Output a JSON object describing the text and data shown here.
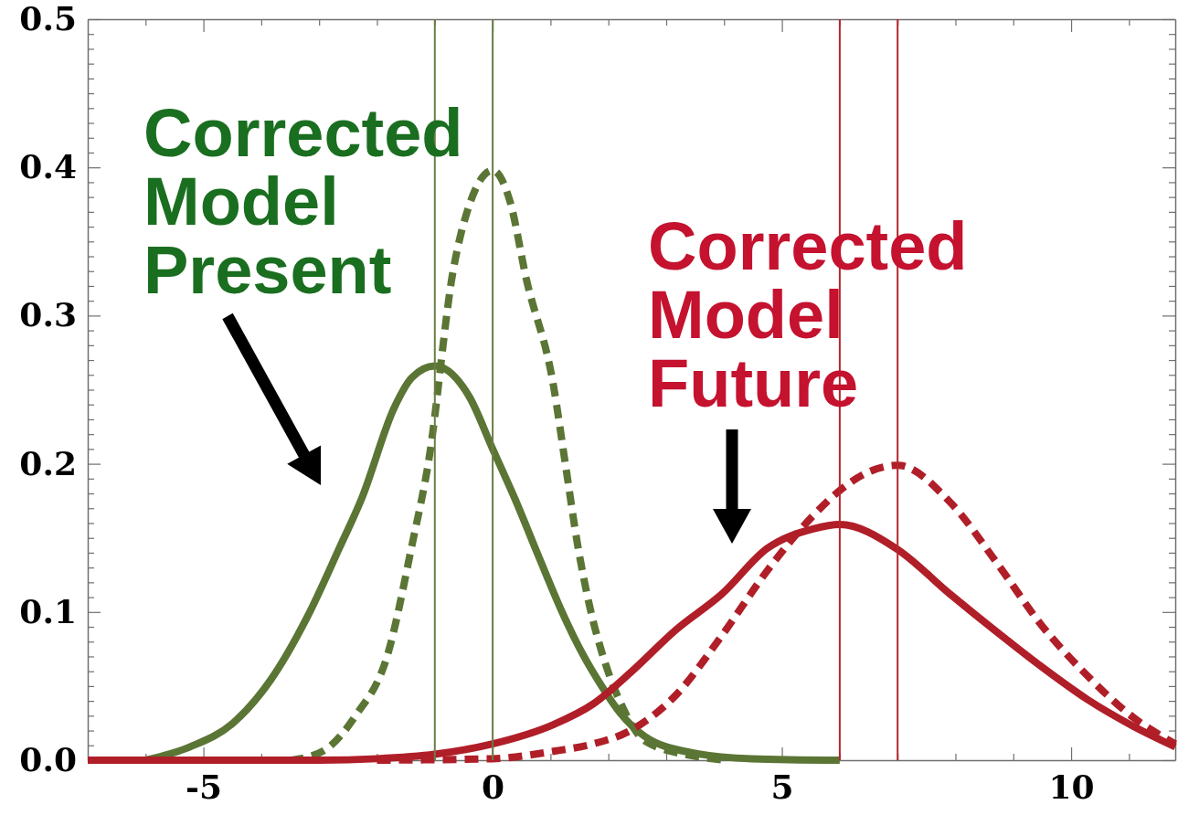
{
  "chart_data": {
    "type": "line",
    "xlim": [
      -7,
      11.8
    ],
    "ylim": [
      0,
      0.5
    ],
    "xticks": [
      {
        "value": -6,
        "label": null
      },
      -5,
      {
        "value": -4,
        "label": null
      },
      {
        "value": -3,
        "label": null
      },
      {
        "value": -2,
        "label": null
      },
      {
        "value": -1,
        "label": null
      },
      0,
      {
        "value": 1,
        "label": null
      },
      {
        "value": 2,
        "label": null
      },
      {
        "value": 3,
        "label": null
      },
      {
        "value": 4,
        "label": null
      },
      5,
      {
        "value": 6,
        "label": null
      },
      {
        "value": 7,
        "label": null
      },
      {
        "value": 8,
        "label": null
      },
      {
        "value": 9,
        "label": null
      },
      10,
      {
        "value": 11,
        "label": null
      }
    ],
    "yticks": [
      {
        "value": 0,
        "label": "0.0"
      },
      {
        "value": 0.01,
        "label": null
      },
      {
        "value": 0.02,
        "label": null
      },
      {
        "value": 0.03,
        "label": null
      },
      {
        "value": 0.04,
        "label": null
      },
      {
        "value": 0.05,
        "label": null
      },
      {
        "value": 0.06,
        "label": null
      },
      {
        "value": 0.07,
        "label": null
      },
      {
        "value": 0.08,
        "label": null
      },
      {
        "value": 0.09,
        "label": null
      },
      0.1,
      {
        "value": 0.11,
        "label": null
      },
      {
        "value": 0.12,
        "label": null
      },
      {
        "value": 0.13,
        "label": null
      },
      {
        "value": 0.14,
        "label": null
      },
      {
        "value": 0.15,
        "label": null
      },
      {
        "value": 0.16,
        "label": null
      },
      {
        "value": 0.17,
        "label": null
      },
      {
        "value": 0.18,
        "label": null
      },
      {
        "value": 0.19,
        "label": null
      },
      0.2,
      {
        "value": 0.21,
        "label": null
      },
      {
        "value": 0.22,
        "label": null
      },
      {
        "value": 0.23,
        "label": null
      },
      {
        "value": 0.24,
        "label": null
      },
      {
        "value": 0.25,
        "label": null
      },
      {
        "value": 0.26,
        "label": null
      },
      {
        "value": 0.27,
        "label": null
      },
      {
        "value": 0.28,
        "label": null
      },
      {
        "value": 0.29,
        "label": null
      },
      0.3,
      {
        "value": 0.31,
        "label": null
      },
      {
        "value": 0.32,
        "label": null
      },
      {
        "value": 0.33,
        "label": null
      },
      {
        "value": 0.34,
        "label": null
      },
      {
        "value": 0.35,
        "label": null
      },
      {
        "value": 0.36,
        "label": null
      },
      {
        "value": 0.37,
        "label": null
      },
      {
        "value": 0.38,
        "label": null
      },
      {
        "value": 0.39,
        "label": null
      },
      0.4,
      {
        "value": 0.41,
        "label": null
      },
      {
        "value": 0.42,
        "label": null
      },
      {
        "value": 0.43,
        "label": null
      },
      {
        "value": 0.44,
        "label": null
      },
      {
        "value": 0.45,
        "label": null
      },
      {
        "value": 0.46,
        "label": null
      },
      {
        "value": 0.47,
        "label": null
      },
      {
        "value": 0.48,
        "label": null
      },
      {
        "value": 0.49,
        "label": null
      },
      0.5
    ],
    "series": [
      {
        "color": "#5b7535",
        "line_style": "solid",
        "x": [
          -6,
          -5.23,
          -4.49,
          -3.84,
          -3.2,
          -2.64,
          -2.26,
          -1.7,
          -1.4,
          -1,
          -0.4,
          0,
          0.4,
          0.8,
          1.2,
          1.55,
          1.9,
          2.2,
          2.63,
          3.45,
          4.48,
          6
        ],
        "values": [
          0,
          0.009,
          0.025,
          0.054,
          0.097,
          0.144,
          0.177,
          0.238,
          0.258,
          0.266,
          0.245,
          0.21,
          0.175,
          0.137,
          0.1,
          0.072,
          0.049,
          0.032,
          0.016,
          0.005,
          0.001,
          0
        ]
      },
      {
        "color": "#5b7535",
        "line_style": "dashed",
        "x": [
          -3.5,
          -2.94,
          -2.37,
          -1.81,
          -1.39,
          -1.11,
          -0.68,
          -0.4,
          0,
          0.3,
          0.58,
          1.05,
          1.26,
          1.47,
          1.67,
          1.95,
          2.22,
          2.63,
          3.45,
          4
        ],
        "values": [
          0,
          0.006,
          0.03,
          0.072,
          0.146,
          0.201,
          0.331,
          0.375,
          0.398,
          0.377,
          0.325,
          0.253,
          0.199,
          0.145,
          0.105,
          0.065,
          0.038,
          0.013,
          0.003,
          0
        ]
      },
      {
        "color": "#b01e28",
        "line_style": "solid",
        "x": [
          -7,
          -3,
          -2,
          -1,
          0,
          1.05,
          1.74,
          2.38,
          3.17,
          3.96,
          4.75,
          5.54,
          6,
          6.97,
          7.91,
          8.7,
          9.49,
          10.28,
          11.07,
          11.8
        ],
        "values": [
          0,
          0,
          0.001,
          0.004,
          0.011,
          0.024,
          0.038,
          0.059,
          0.088,
          0.112,
          0.143,
          0.156,
          0.159,
          0.143,
          0.112,
          0.087,
          0.063,
          0.041,
          0.023,
          0.009
        ]
      },
      {
        "color": "#b01e28",
        "line_style": "dashed",
        "x": [
          -2,
          0,
          1.05,
          1.74,
          2.38,
          3.17,
          3.96,
          4.75,
          5.54,
          6,
          6.53,
          7,
          7.91,
          8.7,
          9.49,
          10.28,
          11.07,
          11.8
        ],
        "values": [
          0,
          0.001,
          0.006,
          0.011,
          0.02,
          0.044,
          0.084,
          0.128,
          0.165,
          0.182,
          0.195,
          0.199,
          0.174,
          0.134,
          0.091,
          0.057,
          0.029,
          0.011
        ]
      }
    ],
    "ref_lines": [
      {
        "axis": "x",
        "value": -1,
        "color": "#6b7d45"
      },
      {
        "axis": "x",
        "value": 0,
        "color": "#6b7d45"
      },
      {
        "axis": "x",
        "value": 6,
        "color": "#b5262e"
      },
      {
        "axis": "x",
        "value": 7,
        "color": "#b5262e"
      }
    ],
    "annotations": [
      "Corrected Model Present",
      "Corrected Model Future"
    ]
  }
}
